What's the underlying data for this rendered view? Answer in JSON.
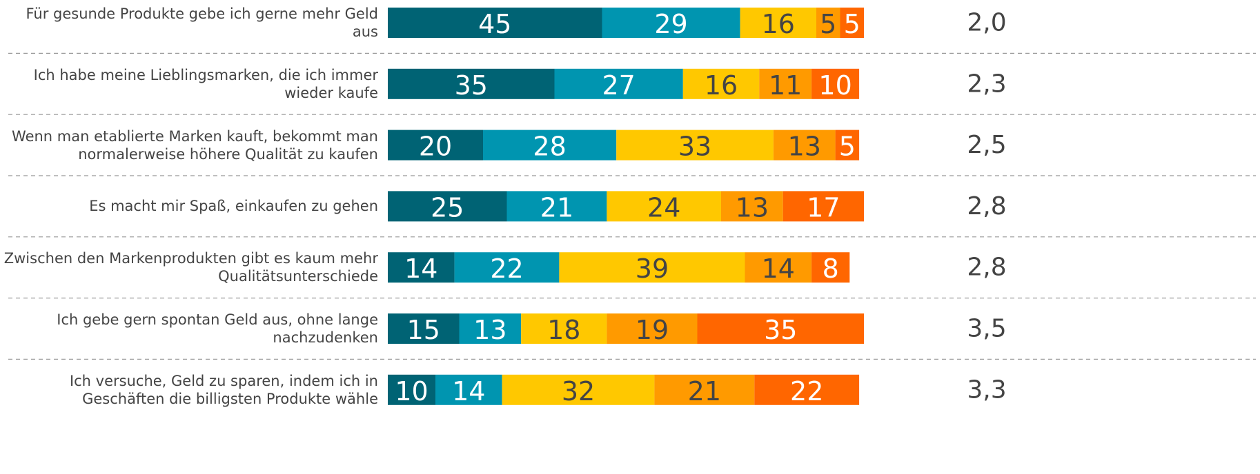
{
  "chart_data": {
    "type": "stacked_bar_horizontal",
    "categories": [
      "Für gesunde Produkte gebe ich gerne mehr Geld aus",
      "Ich habe meine Lieblingsmarken, die ich immer wieder kaufe",
      "Wenn man etablierte Marken kauft, bekommt man normalerweise höhere Qualität zu kaufen",
      "Es macht mir Spaß, einkaufen zu gehen",
      "Zwischen den Markenprodukten gibt es kaum mehr Qualitätsunterschiede",
      "Ich gebe gern spontan Geld aus, ohne lange nachzudenken",
      "Ich versuche, Geld zu sparen, indem ich in Geschäften die billigsten Produkte wähle"
    ],
    "series": [
      {
        "color": "#006374",
        "values": [
          45,
          35,
          20,
          25,
          14,
          15,
          10
        ]
      },
      {
        "color": "#0095b0",
        "values": [
          29,
          27,
          28,
          21,
          22,
          13,
          14
        ]
      },
      {
        "color": "#ffc800",
        "values": [
          16,
          16,
          33,
          24,
          39,
          18,
          32
        ]
      },
      {
        "color": "#ff9a00",
        "values": [
          5,
          11,
          13,
          13,
          14,
          19,
          21
        ]
      },
      {
        "color": "#ff6600",
        "values": [
          5,
          10,
          5,
          17,
          8,
          35,
          22
        ]
      }
    ],
    "averages": [
      "2,0",
      "2,3",
      "2,5",
      "2,8",
      "2,8",
      "3,5",
      "3,3"
    ],
    "xlim": [
      0,
      100
    ]
  }
}
